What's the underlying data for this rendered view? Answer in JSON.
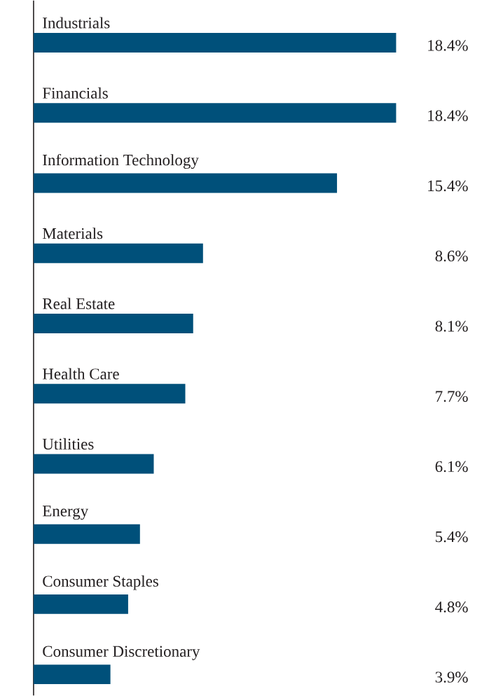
{
  "chart_data": {
    "type": "bar",
    "orientation": "horizontal",
    "color": "#00507a",
    "categories": [
      "Industrials",
      "Financials",
      "Information Technology",
      "Materials",
      "Real Estate",
      "Health Care",
      "Utilities",
      "Energy",
      "Consumer Staples",
      "Consumer Discretionary"
    ],
    "values": [
      18.4,
      18.4,
      15.4,
      8.6,
      8.1,
      7.7,
      6.1,
      5.4,
      4.8,
      3.9
    ],
    "value_labels": [
      "18.4%",
      "18.4%",
      "15.4%",
      "8.6%",
      "8.1%",
      "7.7%",
      "6.1%",
      "5.4%",
      "4.8%",
      "3.9%"
    ]
  }
}
